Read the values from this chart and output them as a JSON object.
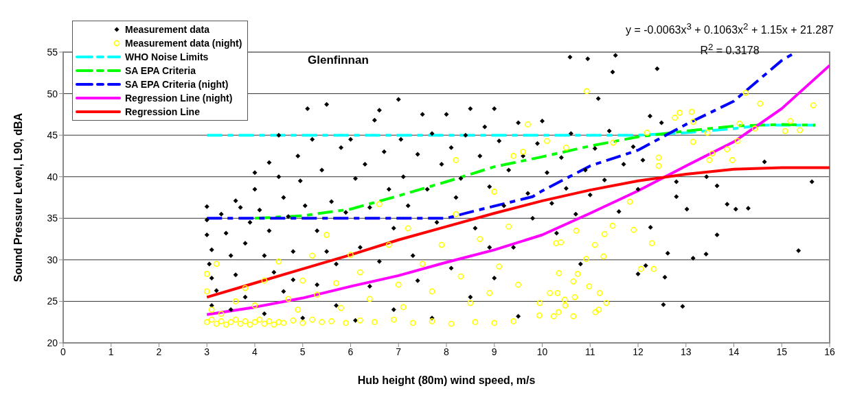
{
  "chart_data": {
    "type": "scatter",
    "title": "Glenfinnan",
    "xlabel": "Hub height (80m) wind speed, m/s",
    "ylabel": "Sound Pressure Level, L90, dBA",
    "annotations": [
      "y = -0.0063x$^{3}$ + 0.1063x$^{2}$ + 1.15x + 21.287",
      "R$^{2}$ = 0.3178"
    ],
    "xlim": [
      0,
      16
    ],
    "xticks": [
      0,
      1,
      2,
      3,
      4,
      5,
      6,
      7,
      8,
      9,
      10,
      11,
      12,
      13,
      14,
      15,
      16
    ],
    "ylim": [
      20,
      55
    ],
    "yticks": [
      20,
      25,
      30,
      35,
      40,
      45,
      50,
      55
    ],
    "grid": "y",
    "legend": "top left",
    "series": [
      {
        "name": "Measurement data",
        "color": "#000000",
        "marker": "diamond",
        "x": [
          3,
          3,
          3,
          3.1,
          3.05,
          3.1,
          3.2,
          3.1,
          3.3,
          3.4,
          3.5,
          3.6,
          3.7,
          3.6,
          3.8,
          3.9,
          4,
          4,
          4.1,
          4.2,
          4.3,
          4.3,
          4.5,
          4.5,
          4.6,
          4.7,
          4.8,
          4.8,
          4.9,
          4.95,
          5.05,
          5.1,
          5.2,
          5.3,
          5.4,
          5.5,
          5.6,
          5.7,
          5.8,
          5.9,
          6,
          6.1,
          6.2,
          6.3,
          6.4,
          6.5,
          6.6,
          6.7,
          6.8,
          6.9,
          7,
          7.05,
          7.1,
          7.2,
          7.3,
          7.4,
          7.5,
          7.6,
          7.7,
          7.8,
          7.9,
          8,
          8.1,
          8.2,
          8.3,
          8.4,
          8.5,
          8.6,
          8.7,
          8.8,
          8.9,
          9,
          9.1,
          9.2,
          9.3,
          9.4,
          9.5,
          9.6,
          9.7,
          9.8,
          9.9,
          10,
          10.1,
          10.2,
          10.3,
          10.4,
          10.5,
          10.6,
          10.7,
          10.8,
          10.9,
          11,
          11.1,
          11.3,
          11.4,
          11.6,
          11.7,
          11.9,
          12,
          3.5,
          3.8,
          4.2,
          4.6,
          5,
          5.3,
          5.7,
          6.1,
          6.4,
          6.9,
          7.4,
          7.7,
          8.1,
          8.5,
          9,
          9.5,
          6.6,
          5.5,
          4.4,
          8.9,
          10.58,
          10.95,
          11.53,
          11.47,
          12.4,
          11.17,
          12.25,
          12.49,
          13.43,
          13.65,
          15.63,
          12.8,
          12.8,
          13.02,
          13.86,
          14.04,
          14.3,
          13.65,
          12.62,
          13.15,
          13.42,
          15.35,
          12.56,
          12.53,
          12.93,
          12.26,
          12.16,
          12,
          14.64,
          12.1
        ],
        "values": [
          36.4,
          34.8,
          33,
          31.2,
          29.5,
          27.8,
          26.3,
          24.5,
          35.5,
          33.2,
          30.5,
          37.1,
          36.3,
          28.2,
          32,
          34.5,
          38.5,
          40.5,
          36,
          30.5,
          41.7,
          33.5,
          40,
          45,
          37.5,
          35.2,
          31,
          27.6,
          42.5,
          39.5,
          36.5,
          48.2,
          44.5,
          33.5,
          40.8,
          48.7,
          37,
          29.5,
          43.5,
          35.7,
          44.5,
          39.8,
          31.5,
          41.5,
          36.3,
          46.8,
          48,
          43,
          38.5,
          33.8,
          49.3,
          44.5,
          40,
          36.5,
          30.5,
          42.7,
          47.5,
          38.5,
          45.2,
          34.5,
          41.5,
          47.5,
          43.5,
          37.5,
          39.8,
          45,
          48.2,
          33.8,
          42.5,
          46,
          38.8,
          48.2,
          44.3,
          36.5,
          40.8,
          31.5,
          46.5,
          42.5,
          38,
          35,
          44,
          46.7,
          40.5,
          36.8,
          33.2,
          42.3,
          38.6,
          45.2,
          35.5,
          29.5,
          40.8,
          37.8,
          43.4,
          39.6,
          45.5,
          35.8,
          41.5,
          43.6,
          38.5,
          24,
          25.5,
          23.5,
          26.2,
          23,
          27,
          24.5,
          22.7,
          26.8,
          24,
          27.5,
          23,
          29,
          25.5,
          27.8,
          23.2,
          29.8,
          31,
          28.5,
          31.5,
          54.4,
          54.2,
          54.6,
          52.6,
          53,
          49.4,
          47.3,
          46.5,
          40,
          38.9,
          39.4,
          39.4,
          37.6,
          36.1,
          36.7,
          36.1,
          36.2,
          33,
          30.8,
          30.2,
          30.7,
          31.1,
          27.9,
          24.6,
          24.4,
          33.9,
          29.3,
          28.3,
          41.8,
          42
        ]
      },
      {
        "name": "Measurement data (night)",
        "color": "#ffff00",
        "marker": "circle",
        "x": [
          3,
          3.1,
          3.2,
          3.3,
          3.4,
          3.5,
          3.6,
          3.7,
          3.8,
          3.9,
          4,
          4.1,
          4.2,
          4.3,
          4.4,
          4.5,
          4.6,
          4.8,
          5,
          5.2,
          5.4,
          5.6,
          5.9,
          6.2,
          6.5,
          6.9,
          7.3,
          7.7,
          8.1,
          8.6,
          9,
          9.4,
          3,
          3,
          3.2,
          3.1,
          3.3,
          3.6,
          3.8,
          4,
          4.2,
          4.5,
          4.7,
          4.9,
          5,
          5.2,
          5.3,
          5.5,
          5.7,
          5.8,
          6,
          6.2,
          6.4,
          6.6,
          6.8,
          7,
          7.1,
          7.2,
          7.5,
          7.7,
          7.9,
          8.2,
          8.3,
          8.5,
          8.7,
          8.9,
          9.1,
          9.3,
          9.5,
          9.6,
          9.7,
          9.4,
          8.2,
          9,
          10.1,
          10.5,
          10.93,
          14.25,
          14.55,
          15.66,
          13.12,
          12.87,
          12.77,
          13.15,
          14.12,
          15.18,
          15.07,
          15.38,
          14.44,
          13.45,
          14.08,
          13.86,
          13.55,
          13.49,
          13.97,
          13.15,
          12.43,
          12.43,
          12.19,
          11.83,
          11.48,
          12.29,
          12.06,
          12.33,
          11.91,
          11.47,
          11.3,
          11.1,
          10.71,
          10.29,
          10.39,
          11.28,
          10.92,
          10.35,
          10.74,
          10.65,
          10.98,
          11.2,
          10.16,
          10.32,
          10.47,
          10.68,
          9.95,
          10.48,
          11.34,
          11.18,
          11.11,
          9.94,
          10.24,
          10.65,
          10.34
        ],
        "values": [
          22.5,
          22.8,
          22.3,
          22.6,
          22.2,
          22.5,
          22.8,
          22.3,
          22.6,
          22.2,
          22.5,
          22.8,
          22.3,
          22.6,
          22.2,
          22.5,
          22.4,
          22.7,
          22.4,
          22.8,
          22.5,
          22.6,
          22.4,
          22.7,
          22.5,
          22.8,
          22.4,
          22.6,
          22.3,
          22.5,
          22.4,
          22.6,
          28.3,
          26.2,
          29.5,
          24,
          23.5,
          25,
          26.6,
          24.5,
          27.5,
          29.8,
          25.3,
          24,
          27.5,
          30.5,
          25.8,
          33,
          27.2,
          24.2,
          30.6,
          28.5,
          25.3,
          36.7,
          31.8,
          27,
          24.3,
          33.8,
          29.5,
          26.2,
          31.8,
          35.5,
          28,
          24.8,
          32.5,
          26,
          29.2,
          34,
          27,
          43,
          46.3,
          42.5,
          42,
          38.2,
          44.3,
          43.5,
          50.3,
          50.1,
          48.8,
          48.6,
          47.8,
          47.7,
          47.1,
          46.6,
          46.4,
          46.7,
          45.5,
          45.6,
          45.8,
          45.3,
          44.3,
          43.3,
          42.8,
          42,
          42,
          44.2,
          42.3,
          41.3,
          45.3,
          37,
          44.1,
          32,
          28.9,
          28.9,
          33.6,
          34.1,
          33.1,
          31.8,
          33.5,
          32,
          32.1,
          30.4,
          30.1,
          28.4,
          28.3,
          27.4,
          26.8,
          26,
          26,
          26,
          25.2,
          25.5,
          24.8,
          24.5,
          24.8,
          24,
          23.7,
          23.3,
          23.2,
          23.2,
          23.7
        ]
      },
      {
        "name": "WHO Noise Limits",
        "type": "line",
        "color": "#00ffff",
        "line_style": "dashed",
        "x": [
          3,
          4,
          5,
          6,
          7,
          8,
          9,
          10,
          11,
          12,
          13,
          14,
          14.6,
          15.7
        ],
        "values": [
          45,
          45,
          45,
          45,
          45,
          45,
          45,
          45,
          45,
          45,
          45.3,
          45.8,
          46.2,
          46.2
        ]
      },
      {
        "name": "SA EPA Criteria",
        "type": "line",
        "color": "#00ff00",
        "line_style": "dashed",
        "x": [
          4,
          5,
          6,
          7,
          8,
          9,
          10,
          11,
          12,
          13,
          14,
          15,
          15.7
        ],
        "values": [
          35,
          35.3,
          36.1,
          37.7,
          39.4,
          41.2,
          42.4,
          43.7,
          44.8,
          45.5,
          46.1,
          46.3,
          46.2
        ]
      },
      {
        "name": "SA EPA Criteria (night)",
        "type": "line",
        "color": "#0000ff",
        "line_style": "dashed",
        "x": [
          3,
          4,
          5,
          6,
          7,
          8,
          8.6,
          9.8,
          10,
          11,
          12,
          13,
          14,
          15,
          15.3
        ],
        "values": [
          35,
          35,
          35,
          35,
          35,
          35,
          35.9,
          37.6,
          38.3,
          41.3,
          43.2,
          46.3,
          49.1,
          54,
          55
        ]
      },
      {
        "name": "Regression Line (night)",
        "type": "line",
        "color": "#ff00ff",
        "line_style": "solid",
        "x": [
          3,
          4,
          5,
          6,
          7,
          8,
          9,
          10,
          11,
          12,
          13,
          14,
          15,
          16
        ],
        "values": [
          23.4,
          24.3,
          25.4,
          26.8,
          28.1,
          29.7,
          31.2,
          33,
          35.6,
          38.3,
          41.3,
          44.2,
          48.2,
          53.4
        ]
      },
      {
        "name": "Regression Line",
        "type": "line",
        "color": "#ff0000",
        "line_style": "solid",
        "x": [
          3,
          4,
          5,
          6,
          7,
          8,
          9,
          10,
          11,
          12,
          13,
          14,
          15,
          16
        ],
        "values": [
          25.5,
          27.2,
          28.9,
          30.6,
          32.4,
          34,
          35.6,
          37.1,
          38.4,
          39.5,
          40.3,
          40.9,
          41.1,
          41.1
        ]
      }
    ]
  }
}
